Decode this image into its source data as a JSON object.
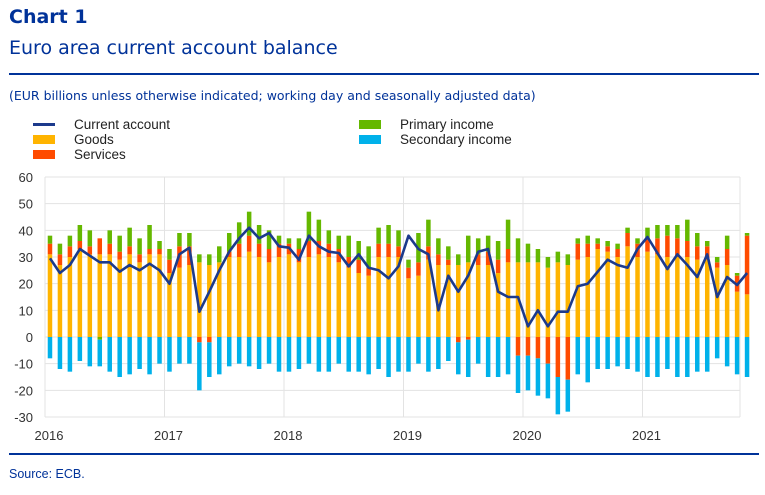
{
  "header": {
    "chart_number": "Chart 1",
    "title": "Euro area current account balance",
    "subtitle": "(EUR billions unless otherwise indicated; working day and seasonally adjusted data)"
  },
  "legend": {
    "items": [
      {
        "label": "Current account",
        "color": "#1c3a8c",
        "kind": "line"
      },
      {
        "label": "Goods",
        "color": "#ffb400",
        "kind": "bar"
      },
      {
        "label": "Services",
        "color": "#ff4b00",
        "kind": "bar"
      },
      {
        "label": "Primary income",
        "color": "#65b800",
        "kind": "bar"
      },
      {
        "label": "Secondary income",
        "color": "#00b1ea",
        "kind": "bar"
      }
    ]
  },
  "footer": {
    "source": "Source: ECB."
  },
  "chart_data": {
    "type": "bar",
    "stacked": true,
    "title": "Euro area current account balance",
    "xlabel": "",
    "ylabel": "EUR billions",
    "ylim": [
      -30,
      60
    ],
    "yticks": [
      60,
      50,
      40,
      30,
      20,
      10,
      0,
      -10,
      -20,
      -30
    ],
    "xticks": [
      "2016",
      "2017",
      "2018",
      "2019",
      "2020",
      "2021"
    ],
    "grid": true,
    "legend_position": "top",
    "period": "monthly, Jan 2016 - Nov 2021",
    "series": [
      {
        "name": "Goods",
        "color": "#ffb400",
        "values": [
          31,
          27,
          30,
          33,
          31,
          31,
          31,
          29,
          31,
          28,
          31,
          31,
          24,
          26,
          27,
          28,
          27,
          28,
          30,
          30,
          32,
          30,
          28,
          30,
          31,
          28,
          30,
          31,
          30,
          28,
          26,
          24,
          23,
          30,
          30,
          30,
          22,
          23,
          29,
          27,
          27,
          27,
          28,
          27,
          27,
          24,
          28,
          28,
          28,
          28,
          26,
          28,
          27,
          29,
          30,
          33,
          32,
          30,
          34,
          30,
          32,
          31,
          30,
          30,
          30,
          29,
          29,
          26,
          27,
          17,
          16
        ]
      },
      {
        "name": "Services",
        "color": "#ff4b00",
        "values": [
          4,
          4,
          4,
          3,
          3,
          6,
          4,
          3,
          3,
          3,
          2,
          2,
          5,
          8,
          7,
          -2,
          -2,
          0,
          2,
          5,
          6,
          5,
          5,
          5,
          4,
          5,
          6,
          5,
          5,
          5,
          4,
          5,
          3,
          5,
          5,
          4,
          4,
          5,
          5,
          4,
          2,
          -2,
          -1,
          4,
          5,
          5,
          5,
          -7,
          -7,
          -8,
          -10,
          -15,
          -16,
          6,
          5,
          2,
          2,
          3,
          5,
          5,
          5,
          6,
          8,
          7,
          6,
          5,
          5,
          2,
          6,
          6,
          22
        ]
      },
      {
        "name": "Primary income",
        "color": "#65b800",
        "values": [
          3,
          4,
          4,
          6,
          6,
          -1,
          5,
          6,
          7,
          6,
          9,
          3,
          4,
          5,
          5,
          3,
          4,
          6,
          7,
          8,
          9,
          7,
          7,
          3,
          2,
          4,
          11,
          8,
          5,
          5,
          8,
          7,
          8,
          6,
          7,
          6,
          3,
          11,
          10,
          6,
          5,
          4,
          10,
          6,
          6,
          7,
          11,
          9,
          7,
          5,
          4,
          4,
          4,
          2,
          3,
          2,
          2,
          2,
          2,
          2,
          4,
          5,
          4,
          5,
          8,
          5,
          2,
          2,
          5,
          1,
          1
        ]
      },
      {
        "name": "Secondary income",
        "color": "#00b1ea",
        "values": [
          -8,
          -12,
          -13,
          -9,
          -11,
          -10,
          -13,
          -15,
          -14,
          -12,
          -14,
          -10,
          -13,
          -10,
          -10,
          -18,
          -13,
          -14,
          -11,
          -10,
          -11,
          -12,
          -10,
          -13,
          -13,
          -12,
          -10,
          -13,
          -13,
          -10,
          -13,
          -13,
          -14,
          -12,
          -15,
          -13,
          -13,
          -10,
          -13,
          -12,
          -9,
          -12,
          -14,
          -10,
          -15,
          -15,
          -14,
          -14,
          -13,
          -14,
          -13,
          -14,
          -12,
          -14,
          -17,
          -12,
          -12,
          -11,
          -12,
          -13,
          -15,
          -15,
          -12,
          -15,
          -15,
          -13,
          -13,
          -8,
          -11,
          -14,
          -15
        ]
      },
      {
        "name": "Current account",
        "color": "#1c3a8c",
        "type": "line",
        "values": [
          29.5,
          24,
          27,
          33,
          30.5,
          28,
          28,
          24.5,
          27,
          25,
          27.5,
          25,
          20,
          31,
          33.5,
          9.5,
          17,
          25,
          32,
          37,
          41,
          37,
          39,
          34,
          33.5,
          29,
          38,
          34,
          32,
          31.5,
          26.5,
          31,
          26,
          25,
          22,
          26.5,
          38,
          33,
          31,
          10,
          23,
          17,
          23,
          32,
          33,
          17,
          15,
          15,
          4,
          10,
          4,
          9.5,
          9.5,
          19,
          20,
          24.5,
          29,
          27,
          26,
          33,
          37.5,
          31.5,
          25.5,
          31,
          27,
          22.5,
          31,
          15,
          22.5,
          19.5,
          24
        ]
      }
    ]
  }
}
